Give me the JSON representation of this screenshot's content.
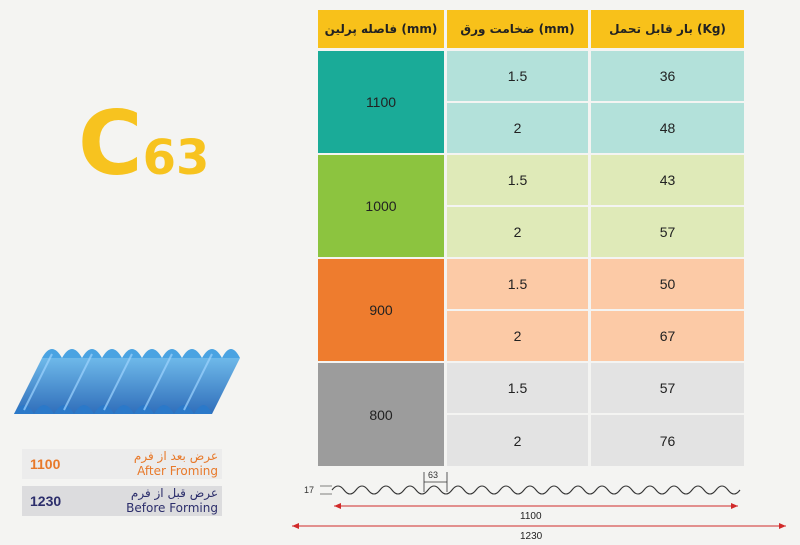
{
  "product": {
    "letter": "C",
    "number": "63"
  },
  "widths": [
    {
      "value": "1100",
      "label_fa": "عرض بعد از فرم",
      "label_en": "After Froming"
    },
    {
      "value": "1230",
      "label_fa": "عرض قبل از فرم",
      "label_en": "Before Forming"
    }
  ],
  "table": {
    "headers": {
      "load": "بار قابل تحمل (Kg)",
      "thickness": "ضخامت ورق (mm)",
      "spacing": "فاصله پرلین (mm)"
    },
    "groups": [
      {
        "spacing": "1100",
        "rows": [
          {
            "thickness": "1.5",
            "load": "36"
          },
          {
            "thickness": "2",
            "load": "48"
          }
        ]
      },
      {
        "spacing": "1000",
        "rows": [
          {
            "thickness": "1.5",
            "load": "43"
          },
          {
            "thickness": "2",
            "load": "57"
          }
        ]
      },
      {
        "spacing": "900",
        "rows": [
          {
            "thickness": "1.5",
            "load": "50"
          },
          {
            "thickness": "2",
            "load": "67"
          }
        ]
      },
      {
        "spacing": "800",
        "rows": [
          {
            "thickness": "1.5",
            "load": "57"
          },
          {
            "thickness": "2",
            "load": "76"
          }
        ]
      }
    ]
  },
  "colors": {
    "accent_yellow": "#f8c11a",
    "group_main": [
      "#1aab98",
      "#8cc43f",
      "#ee7c2e",
      "#9c9c9c"
    ],
    "group_light": [
      "#b3e1da",
      "#dfeab8",
      "#fccaa6",
      "#e3e3e3"
    ],
    "after_forming": "#e8792a",
    "before_forming": "#2c2e6b"
  },
  "profile": {
    "pitch": "63",
    "height": "17",
    "after_width": "1100",
    "before_width": "1230"
  }
}
